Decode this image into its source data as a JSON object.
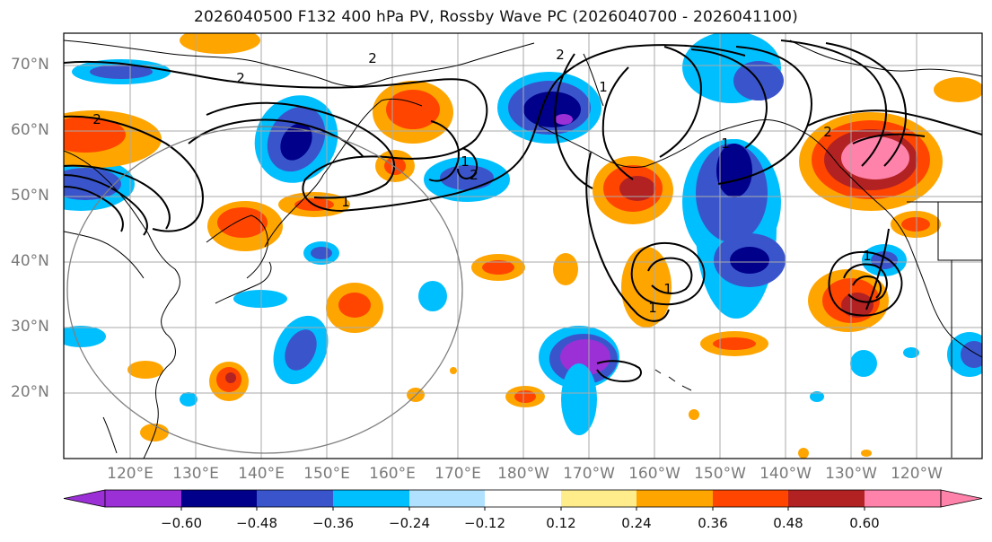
{
  "title": "2026040500 F132 400 hPa PV, Rossby Wave PC (2026040700 - 2026041100)",
  "lat_labels": [
    "70°N",
    "60°N",
    "50°N",
    "40°N",
    "30°N",
    "20°N"
  ],
  "lon_labels": [
    "120°E",
    "130°E",
    "140°E",
    "150°E",
    "160°E",
    "170°E",
    "180°W",
    "170°W",
    "160°W",
    "150°W",
    "140°W",
    "130°W",
    "120°W"
  ],
  "colorbar": {
    "ticks": [
      "−0.60",
      "−0.48",
      "−0.36",
      "−0.24",
      "−0.12",
      "0.12",
      "0.24",
      "0.36",
      "0.48",
      "0.60"
    ],
    "colors": [
      "#9b30d6",
      "#00008b",
      "#3a55cc",
      "#00bfff",
      "#b0e2ff",
      "#ffffff",
      "#ffec8b",
      "#ffa500",
      "#ff4500",
      "#b22222",
      "#ff82ab"
    ]
  },
  "contour_labels": [
    "2",
    "2",
    "2",
    "2",
    "1",
    "1",
    "1",
    "1",
    "2",
    "1",
    "1",
    "1",
    "2"
  ],
  "colors": {
    "land_outline": "#000000",
    "grid": "#aaaaaa",
    "contour": "#000000",
    "circle": "#7f7f7f"
  }
}
